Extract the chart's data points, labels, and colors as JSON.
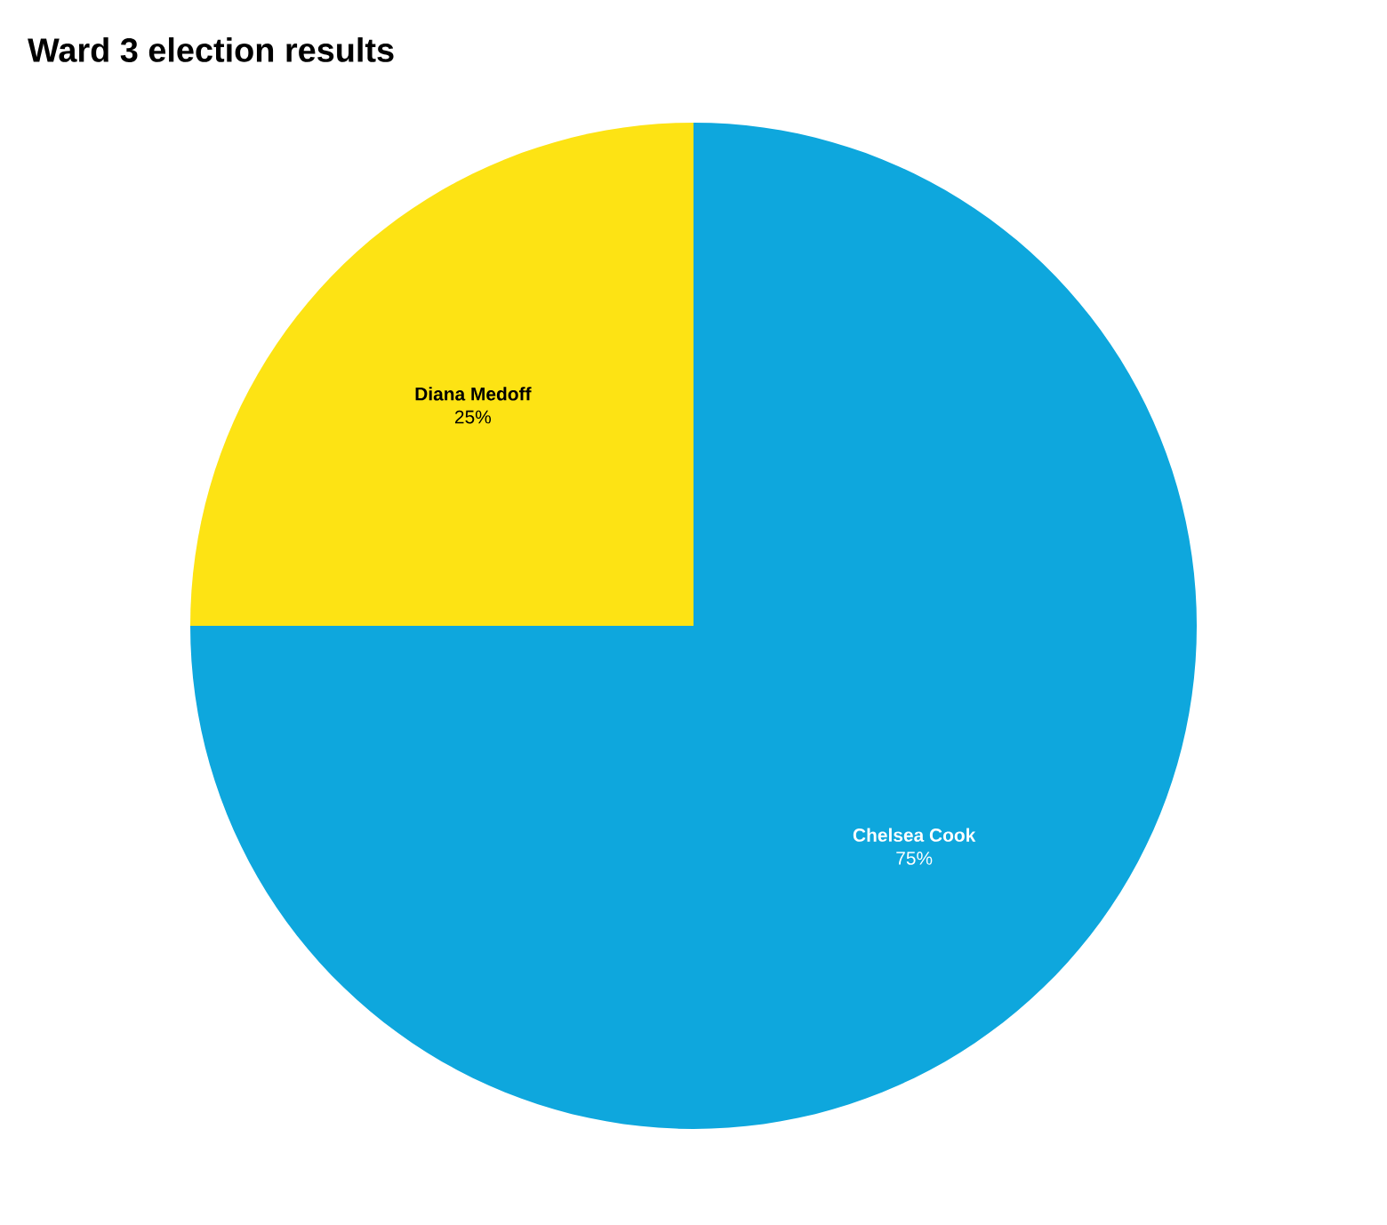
{
  "chart_data": {
    "type": "pie",
    "title": "Ward 3 election results",
    "categories": [
      "Chelsea Cook",
      "Diana Medoff"
    ],
    "values": [
      75,
      25
    ],
    "colors": [
      "#0ea7dd",
      "#fde314"
    ],
    "value_labels": [
      "75%",
      "25%"
    ]
  }
}
